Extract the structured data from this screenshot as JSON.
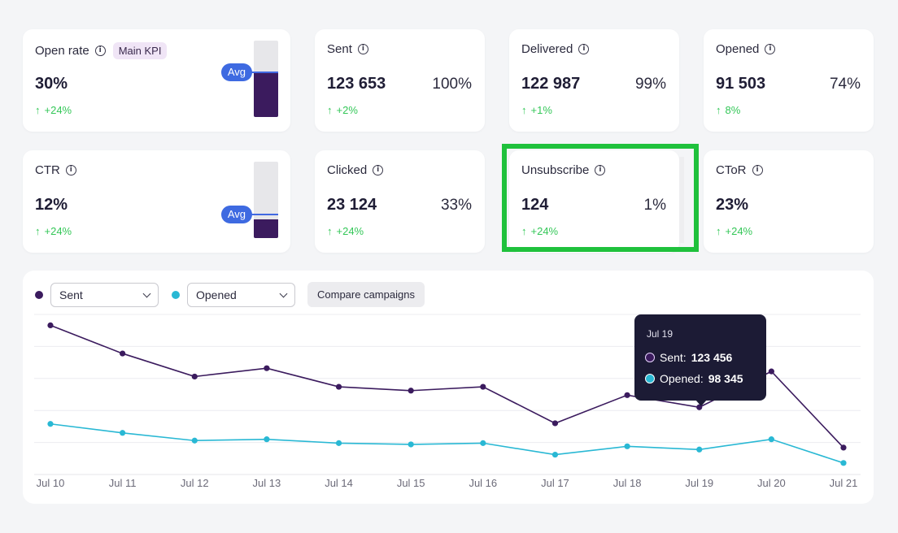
{
  "cards": [
    {
      "title": "Open rate",
      "badge": "Main KPI",
      "value": "30%",
      "change": "+24%",
      "avg_label": "Avg",
      "meter_fill": 0.58,
      "avg_level": 0.58
    },
    {
      "title": "Sent",
      "value": "123 653",
      "pct": "100%",
      "change": "+2%"
    },
    {
      "title": "Delivered",
      "value": "122 987",
      "pct": "99%",
      "change": "+1%"
    },
    {
      "title": "Opened",
      "value": "91 503",
      "pct": "74%",
      "change": "8%"
    },
    {
      "title": "CTR",
      "value": "12%",
      "change": "+24%",
      "avg_label": "Avg",
      "meter_fill": 0.24,
      "avg_level": 0.31
    },
    {
      "title": "Clicked",
      "value": "23 124",
      "pct": "33%",
      "change": "+24%"
    },
    {
      "title": "Unsubscribe",
      "value": "124",
      "pct": "1%",
      "change": "+24%"
    },
    {
      "title": "CToR",
      "value": "23%",
      "change": "+24%"
    }
  ],
  "chart_controls": {
    "series_a_select": "Sent",
    "series_b_select": "Opened",
    "compare_button": "Compare campaigns"
  },
  "colors": {
    "sent": "#3b1b5e",
    "opened": "#29b8d4",
    "positive": "#34c758",
    "avg": "#3e6ae1",
    "highlight": "#1fc13c"
  },
  "chart_data": {
    "type": "line",
    "x": [
      "Jul 10",
      "Jul 11",
      "Jul 12",
      "Jul 13",
      "Jul 14",
      "Jul 15",
      "Jul 16",
      "Jul 17",
      "Jul 18",
      "Jul 19",
      "Jul 20",
      "Jul 21"
    ],
    "series": [
      {
        "name": "Sent",
        "values": [
          233,
          189,
          153,
          166,
          137,
          131,
          137,
          80,
          124,
          105,
          161,
          42
        ]
      },
      {
        "name": "Opened",
        "values": [
          79,
          65,
          53,
          55,
          49,
          47,
          49,
          31,
          44,
          39,
          55,
          18
        ]
      }
    ],
    "ylim": [
      0,
      250
    ],
    "y_gridlines": [
      50,
      100,
      150,
      200,
      250
    ],
    "grid": true,
    "legend": "top-left"
  },
  "tooltip": {
    "date": "Jul 19",
    "sent_label": "Sent:",
    "sent_value": "123 456",
    "opened_label": "Opened:",
    "opened_value": "98 345"
  }
}
